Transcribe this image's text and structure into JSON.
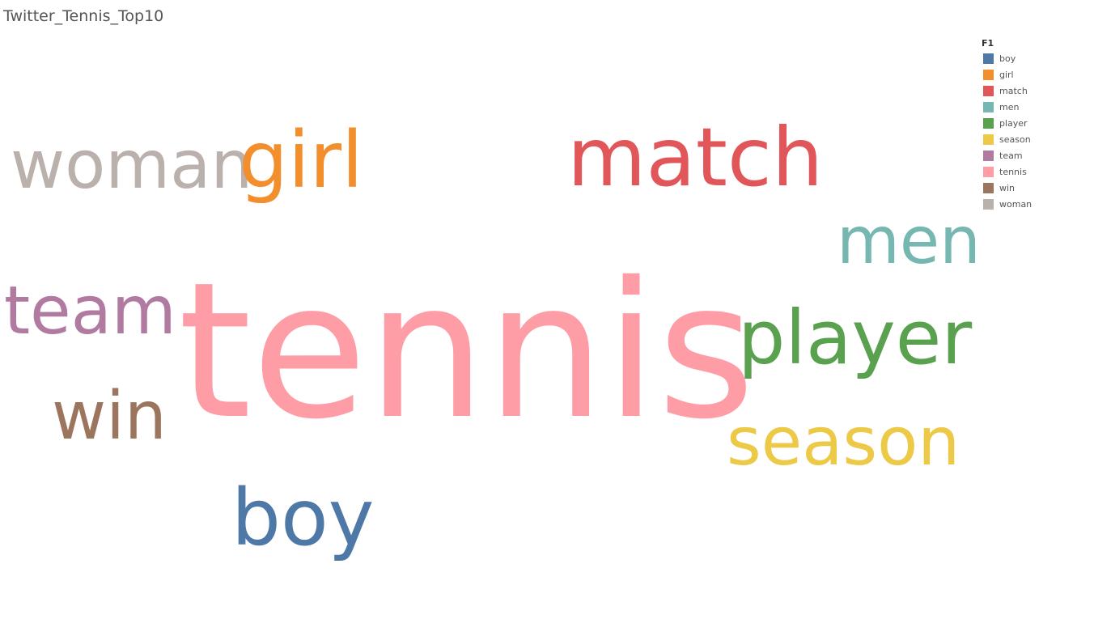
{
  "title": "Twitter_Tennis_Top10",
  "legend": {
    "title": "F1",
    "items": [
      {
        "label": "boy",
        "color": "#4e79a7"
      },
      {
        "label": "girl",
        "color": "#f28e2b"
      },
      {
        "label": "match",
        "color": "#e15759"
      },
      {
        "label": "men",
        "color": "#76b7b2"
      },
      {
        "label": "player",
        "color": "#59a14f"
      },
      {
        "label": "season",
        "color": "#edc948"
      },
      {
        "label": "team",
        "color": "#b07aa1"
      },
      {
        "label": "tennis",
        "color": "#ff9da7"
      },
      {
        "label": "win",
        "color": "#9c755f"
      },
      {
        "label": "woman",
        "color": "#bab0ac"
      }
    ]
  },
  "chart_data": {
    "type": "wordcloud",
    "title": "Twitter_Tennis_Top10",
    "legend_title": "F1",
    "legend_position": "top-right",
    "words": [
      {
        "text": "tennis",
        "color": "#ff9da7",
        "rank": 1
      },
      {
        "text": "match",
        "color": "#e15759",
        "rank": 2
      },
      {
        "text": "player",
        "color": "#59a14f",
        "rank": 3
      },
      {
        "text": "woman",
        "color": "#bab0ac",
        "rank": 4
      },
      {
        "text": "girl",
        "color": "#f28e2b",
        "rank": 5
      },
      {
        "text": "boy",
        "color": "#4e79a7",
        "rank": 6
      },
      {
        "text": "men",
        "color": "#76b7b2",
        "rank": 7
      },
      {
        "text": "season",
        "color": "#edc948",
        "rank": 8
      },
      {
        "text": "team",
        "color": "#b07aa1",
        "rank": 9
      },
      {
        "text": "win",
        "color": "#9c755f",
        "rank": 10
      }
    ]
  }
}
